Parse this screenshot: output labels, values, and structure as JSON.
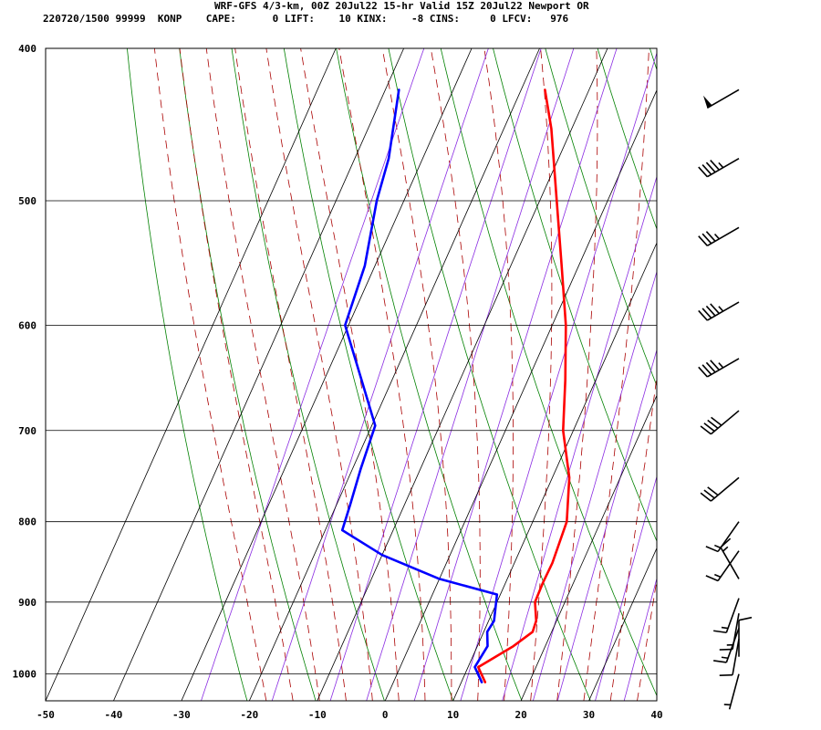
{
  "header": {
    "line1": "WRF-GFS 4/3-km, 00Z 20Jul22 15-hr Valid 15Z 20Jul22 Newport OR",
    "line2": "220720/1500 99999  KONP    CAPE:      0 LIFT:    10 KINX:    -8 CINS:     0 LFCV:   976"
  },
  "colors": {
    "temperature": "#ff0000",
    "dewpoint": "#0000ff",
    "dry_adiabat": "#008000",
    "moist_adiabat": "#aa0000",
    "mixing_ratio": "#8a2be2",
    "isobar": "#000000",
    "isotherm": "#000000",
    "wind_barb": "#000000"
  },
  "chart_data": {
    "type": "line",
    "subtype": "skew-t log-p sounding",
    "title": "WRF-GFS 4/3-km, 00Z 20Jul22 15-hr Valid 15Z 20Jul22 Newport OR",
    "xlabel": "",
    "ylabel": "",
    "xlim": [
      -50,
      40
    ],
    "ylim": [
      1040,
      400
    ],
    "y_scale": "log",
    "grid": true,
    "x_ticks": [
      -50,
      -40,
      -30,
      -20,
      -10,
      0,
      10,
      20,
      30,
      40
    ],
    "y_ticks": [
      1000,
      900,
      800,
      700,
      600,
      500,
      400
    ],
    "series": [
      {
        "key": "temperature",
        "color": "#ff0000",
        "points": [
          {
            "p": 1012,
            "t": 13.5
          },
          {
            "p": 990,
            "t": 11.5
          },
          {
            "p": 960,
            "t": 15.3
          },
          {
            "p": 940,
            "t": 17.2
          },
          {
            "p": 925,
            "t": 17.0
          },
          {
            "p": 900,
            "t": 15.6
          },
          {
            "p": 875,
            "t": 15.5
          },
          {
            "p": 850,
            "t": 15.6
          },
          {
            "p": 800,
            "t": 15.0
          },
          {
            "p": 750,
            "t": 12.5
          },
          {
            "p": 700,
            "t": 8.5
          },
          {
            "p": 650,
            "t": 5.5
          },
          {
            "p": 600,
            "t": 2.0
          },
          {
            "p": 550,
            "t": -2.5
          },
          {
            "p": 500,
            "t": -7.5
          },
          {
            "p": 450,
            "t": -13.0
          },
          {
            "p": 425,
            "t": -16.5
          }
        ]
      },
      {
        "key": "dewpoint",
        "color": "#0000ff",
        "points": [
          {
            "p": 1012,
            "t": 13.0
          },
          {
            "p": 990,
            "t": 11.0
          },
          {
            "p": 960,
            "t": 11.5
          },
          {
            "p": 940,
            "t": 10.5
          },
          {
            "p": 925,
            "t": 10.8
          },
          {
            "p": 890,
            "t": 9.5
          },
          {
            "p": 870,
            "t": 0.0
          },
          {
            "p": 840,
            "t": -10.0
          },
          {
            "p": 810,
            "t": -17.5
          },
          {
            "p": 780,
            "t": -18.0
          },
          {
            "p": 740,
            "t": -18.8
          },
          {
            "p": 695,
            "t": -19.5
          },
          {
            "p": 650,
            "t": -24.5
          },
          {
            "p": 600,
            "t": -30.5
          },
          {
            "p": 550,
            "t": -31.5
          },
          {
            "p": 500,
            "t": -34.0
          },
          {
            "p": 470,
            "t": -35.0
          },
          {
            "p": 425,
            "t": -38.0
          }
        ]
      }
    ],
    "wind_barbs": [
      {
        "p": 425,
        "dir": 240,
        "speed": 50
      },
      {
        "p": 470,
        "dir": 240,
        "speed": 45
      },
      {
        "p": 520,
        "dir": 240,
        "speed": 35
      },
      {
        "p": 580,
        "dir": 240,
        "speed": 45
      },
      {
        "p": 630,
        "dir": 240,
        "speed": 45
      },
      {
        "p": 680,
        "dir": 230,
        "speed": 40
      },
      {
        "p": 750,
        "dir": 230,
        "speed": 30
      },
      {
        "p": 800,
        "dir": 215,
        "speed": 15
      },
      {
        "p": 835,
        "dir": 215,
        "speed": 15
      },
      {
        "p": 870,
        "dir": 330,
        "speed": 15
      },
      {
        "p": 895,
        "dir": 200,
        "speed": 15
      },
      {
        "p": 915,
        "dir": 190,
        "speed": 15
      },
      {
        "p": 935,
        "dir": 200,
        "speed": 15
      },
      {
        "p": 950,
        "dir": 190,
        "speed": 10
      },
      {
        "p": 975,
        "dir": 0,
        "speed": 10
      },
      {
        "p": 1000,
        "dir": 195,
        "speed": 5
      }
    ]
  }
}
